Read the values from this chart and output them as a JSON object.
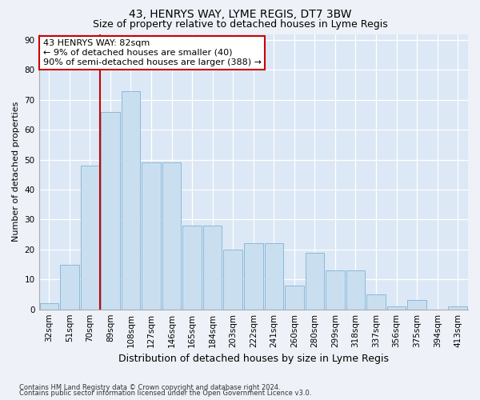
{
  "title": "43, HENRYS WAY, LYME REGIS, DT7 3BW",
  "subtitle": "Size of property relative to detached houses in Lyme Regis",
  "xlabel": "Distribution of detached houses by size in Lyme Regis",
  "ylabel": "Number of detached properties",
  "bar_color": "#c9dff0",
  "bar_edge_color": "#8ab8d8",
  "categories": [
    "32sqm",
    "51sqm",
    "70sqm",
    "89sqm",
    "108sqm",
    "127sqm",
    "146sqm",
    "165sqm",
    "184sqm",
    "203sqm",
    "222sqm",
    "241sqm",
    "260sqm",
    "280sqm",
    "299sqm",
    "318sqm",
    "337sqm",
    "356sqm",
    "375sqm",
    "394sqm",
    "413sqm"
  ],
  "values": [
    2,
    15,
    48,
    66,
    73,
    49,
    49,
    28,
    28,
    20,
    22,
    22,
    8,
    19,
    13,
    13,
    5,
    1,
    3,
    0,
    1
  ],
  "ylim": [
    0,
    92
  ],
  "yticks": [
    0,
    10,
    20,
    30,
    40,
    50,
    60,
    70,
    80,
    90
  ],
  "vline_x": 2.5,
  "vline_color": "#cc0000",
  "annotation_text": "43 HENRYS WAY: 82sqm\n← 9% of detached houses are smaller (40)\n90% of semi-detached houses are larger (388) →",
  "annotation_box_color": "#ffffff",
  "annotation_box_edge": "#cc0000",
  "footer1": "Contains HM Land Registry data © Crown copyright and database right 2024.",
  "footer2": "Contains public sector information licensed under the Open Government Licence v3.0.",
  "fig_facecolor": "#eef2f8",
  "plot_facecolor": "#dce8f5",
  "grid_color": "#ffffff",
  "title_fontsize": 10,
  "subtitle_fontsize": 9,
  "xlabel_fontsize": 9,
  "ylabel_fontsize": 8,
  "tick_fontsize": 7.5,
  "annotation_fontsize": 8,
  "footer_fontsize": 6
}
